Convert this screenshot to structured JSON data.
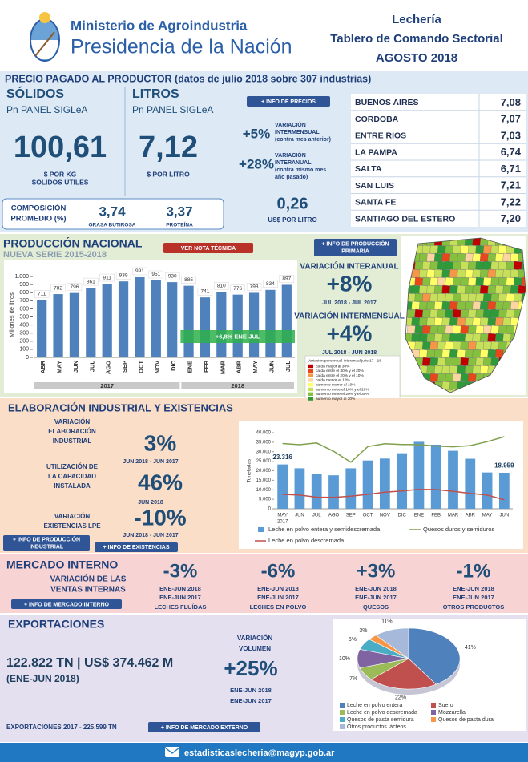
{
  "header": {
    "ministry": "Ministerio de Agroindustria",
    "presidency": "Presidencia de la Nación",
    "title": [
      "Lechería",
      "Tablero de Comando Sectorial",
      "AGOSTO 2018"
    ]
  },
  "precio": {
    "title": "PRECIO PAGADO AL PRODUCTOR (datos de julio 2018 sobre 307 industrias)",
    "solidos": {
      "heading": "SÓLIDOS",
      "panel": "Pn PANEL SIGLeA",
      "value": "100,61",
      "unit": [
        "$ POR KG",
        "SÓLIDOS ÚTILES"
      ]
    },
    "litros": {
      "heading": "LITROS",
      "panel": "Pn PANEL SIGLeA",
      "value": "7,12",
      "unit": [
        "$ POR LITRO"
      ]
    },
    "button": "+ INFO DE PRECIOS",
    "variaciones": [
      {
        "value": "+5%",
        "label": [
          "VARIACIÓN",
          "INTERMENSUAL",
          "(contra mes anterior)"
        ]
      },
      {
        "value": "+28%",
        "label": [
          "VARIACIÓN",
          "INTERANUAL",
          "(contra mismo mes",
          "año pasado)"
        ]
      }
    ],
    "usd": {
      "value": "0,26",
      "unit": "US$ POR LITRO"
    },
    "composicion": {
      "label": [
        "COMPOSICIÓN",
        "PROMEDIO (%)"
      ],
      "items": [
        {
          "value": "3,74",
          "label": "GRASA BUTIROSA"
        },
        {
          "value": "3,37",
          "label": "PROTEÍNA"
        }
      ]
    },
    "provincias": [
      [
        "BUENOS AIRES",
        "7,08"
      ],
      [
        "CORDOBA",
        "7,07"
      ],
      [
        "ENTRE RIOS",
        "7,03"
      ],
      [
        "LA PAMPA",
        "6,74"
      ],
      [
        "SALTA",
        "6,71"
      ],
      [
        "SAN LUIS",
        "7,21"
      ],
      [
        "SANTA FE",
        "7,22"
      ],
      [
        "SANTIAGO DEL ESTERO",
        "7,20"
      ]
    ]
  },
  "produccion": {
    "title": "PRODUCCIÓN NACIONAL",
    "subtitle": "NUEVA SERIE 2015-2018",
    "nota": "VER NOTA TÉCNICA",
    "button": [
      "+ INFO DE PRODUCCIÓN",
      "PRIMARIA"
    ],
    "chart": {
      "type": "bar",
      "y_label": "Millones de litros",
      "color": "#4f81bd",
      "ylim": [
        0,
        1050
      ],
      "yticks": [
        0,
        100,
        200,
        300,
        400,
        500,
        600,
        700,
        800,
        900,
        {
          "value": 1000,
          "label": "1.000"
        }
      ],
      "groups": [
        {
          "label": "2017",
          "categories": [
            "ABR",
            "MAY",
            "JUN",
            "JUL",
            "AGO",
            "SEP",
            "OCT",
            "NOV",
            "DIC"
          ],
          "values": [
            711,
            782,
            796,
            861,
            911,
            939,
            991,
            951,
            930
          ]
        },
        {
          "label": "2018",
          "categories": [
            "ENE",
            "FEB",
            "MAR",
            "ABR",
            "MAY",
            "JUN",
            "JUL"
          ],
          "values": [
            885,
            741,
            810,
            776,
            798,
            834,
            897
          ]
        }
      ],
      "annotation": "+6,8% ENE-JUL"
    },
    "variaciones": [
      {
        "label": "VARIACIÓN INTERANUAL",
        "value": "+8%",
        "period": "JUL 2018 - JUL 2017"
      },
      {
        "label": "VARIACIÓN INTERMENSUAL",
        "value": "+4%",
        "period": "JUL 2018 - JUN 2018"
      }
    ],
    "map_legend": {
      "title": "Variación porcentual interanual julio 17 - 18",
      "items": [
        {
          "label": "caída mayor al 30%",
          "color": "#c00000"
        },
        {
          "label": "caída entre el 30% y el 20%",
          "color": "#e8471c"
        },
        {
          "label": "caída entre el 20% y el 10%",
          "color": "#f79646"
        },
        {
          "label": "caída menor al 10%",
          "color": "#fcd5a0"
        },
        {
          "label": "aumento menor al 10%",
          "color": "#ffff66"
        },
        {
          "label": "aumento entre el 10% y el 20%",
          "color": "#c6e05a"
        },
        {
          "label": "aumento entre el 20% y el 30%",
          "color": "#86c03f"
        },
        {
          "label": "aumento mayor al 30%",
          "color": "#2e9a3a"
        }
      ]
    }
  },
  "elaboracion": {
    "title": "ELABORACIÓN INDUSTRIAL Y EXISTENCIAS",
    "items": [
      {
        "label": [
          "VARIACIÓN",
          "ELABORACIÓN",
          "INDUSTRIAL"
        ],
        "value": "3%",
        "period": "JUN 2018 - JUN 2017"
      },
      {
        "label": [
          "UTILIZACIÓN DE",
          "LA CAPACIDAD",
          "INSTALADA"
        ],
        "value": "46%",
        "period": "JUN 2018"
      },
      {
        "label": [
          "VARIACIÓN",
          "EXISTENCIAS LPE"
        ],
        "value": "-10%",
        "period": "JUN 2018 - JUN 2017"
      }
    ],
    "buttons": [
      [
        "+ INFO DE PRODUCCIÓN",
        "INDUSTRIAL"
      ],
      [
        "+ INFO DE EXISTENCIAS"
      ]
    ],
    "chart": {
      "type": "bar-line",
      "y_label": "Toneladas",
      "ylim": [
        0,
        40000
      ],
      "yticks": [
        0,
        {
          "value": 5000,
          "label": "5.000"
        },
        {
          "value": 10000,
          "label": "10.000"
        },
        {
          "value": 15000,
          "label": "15.000"
        },
        {
          "value": 20000,
          "label": "20.000"
        },
        {
          "value": 25000,
          "label": "25.000"
        },
        {
          "value": 30000,
          "label": "30.000"
        },
        {
          "value": 35000,
          "label": "35.000"
        },
        {
          "value": 40000,
          "label": "40.000"
        }
      ],
      "categories": [
        "MAY",
        "JUN",
        "JUL",
        "AGO",
        "SEP",
        "OCT",
        "NOV",
        "DIC",
        "ENE",
        "FEB",
        "MAR",
        "ABR",
        "MAY",
        "JUN"
      ],
      "x_year_label": "2017",
      "series": [
        {
          "name": "Leche en polvo entera y semidescremada",
          "type": "bar",
          "color": "#5b9bd5",
          "values": [
            23316,
            21300,
            18200,
            17600,
            21300,
            25400,
            26400,
            29200,
            35200,
            33700,
            30500,
            26300,
            19100,
            18959
          ],
          "value_labels": [
            "23.316",
            null,
            null,
            null,
            null,
            null,
            null,
            null,
            null,
            null,
            null,
            null,
            null,
            "18.959"
          ]
        },
        {
          "name": "Quesos duros y semiduros",
          "type": "line",
          "color": "#7f9f4a",
          "values": [
            34300,
            33700,
            34600,
            30200,
            24500,
            32700,
            34200,
            33800,
            33700,
            33000,
            32600,
            33200,
            35300,
            37900
          ]
        },
        {
          "name": "Leche en polvo descremada",
          "type": "line",
          "color": "#c0504d",
          "values": [
            7600,
            7200,
            6100,
            6000,
            6600,
            7600,
            8700,
            9400,
            10200,
            10100,
            9200,
            8100,
            7200,
            4700
          ]
        }
      ]
    }
  },
  "mercado": {
    "title": "MERCADO INTERNO",
    "label": [
      "VARIACIÓN DE LAS",
      "VENTAS INTERNAS"
    ],
    "button": "+ INFO DE MERCADO INTERNO",
    "items": [
      {
        "value": "-3%",
        "period": [
          "ENE-JUN 2018",
          "ENE-JUN 2017"
        ],
        "product": "LECHES FLUÍDAS"
      },
      {
        "value": "-6%",
        "period": [
          "ENE-JUN 2018",
          "ENE-JUN 2017"
        ],
        "product": "LECHES EN POLVO"
      },
      {
        "value": "+3%",
        "period": [
          "ENE-JUN 2018",
          "ENE-JUN 2017"
        ],
        "product": "QUESOS"
      },
      {
        "value": "-1%",
        "period": [
          "ENE-JUN 2018",
          "ENE-JUN 2017"
        ],
        "product": "OTROS PRODUCTOS"
      }
    ]
  },
  "exportaciones": {
    "title": "EXPORTACIONES",
    "value": "122.822 TN | US$ 374.462 M",
    "period": "(ENE-JUN 2018)",
    "variacion": {
      "label": [
        "VARIACIÓN",
        "VOLUMEN"
      ],
      "value": "+25%",
      "period": [
        "ENE-JUN 2018",
        "ENE-JUN 2017"
      ]
    },
    "total": "EXPORTACIONES 2017 - 225.599 TN",
    "button": "+ INFO DE MERCADO EXTERNO",
    "chart": {
      "type": "pie",
      "categories": [
        "Leche en polvo entera",
        "Suero",
        "Leche en polvo descremada",
        "Mozzarella",
        "Quesos de pasta semidura",
        "Quesos de pasta dura",
        "Otros productos lácteos"
      ],
      "values": [
        41,
        22,
        7,
        10,
        6,
        3,
        11
      ],
      "value_labels": [
        "41%",
        "22%",
        "7%",
        "10%",
        "6%",
        "3%",
        "11%"
      ],
      "colors": [
        "#4f81bd",
        "#c0504d",
        "#9bbb59",
        "#8064a2",
        "#4bacc6",
        "#f79646",
        "#a7b9da"
      ]
    }
  },
  "footer": {
    "email": "estadisticaslecheria@magyp.gob.ar"
  }
}
